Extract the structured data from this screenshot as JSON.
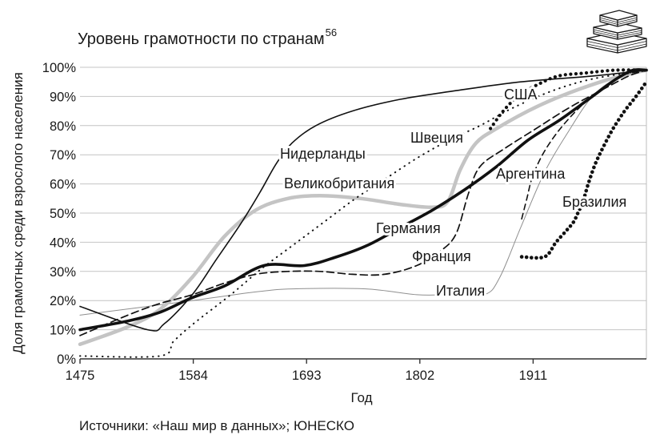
{
  "chart_data": {
    "type": "line",
    "title": "Уровень грамотности по странам",
    "title_superscript": "56",
    "xlabel": "Год",
    "ylabel": "Доля грамотных среди взрослого населения",
    "source": "Источники: «Наш мир в данных»; ЮНЕСКО",
    "xlim": [
      1475,
      2020
    ],
    "ylim": [
      0,
      100
    ],
    "x_ticks": [
      1475,
      1584,
      1693,
      1802,
      1911
    ],
    "y_ticks": [
      0,
      10,
      20,
      30,
      40,
      50,
      60,
      70,
      80,
      90,
      100
    ],
    "y_tick_labels": [
      "0%",
      "10%",
      "20%",
      "30%",
      "40%",
      "50%",
      "60%",
      "70%",
      "80%",
      "90%",
      "100%"
    ],
    "grid": true,
    "series": [
      {
        "name": "Италия",
        "color": "#8f8f8f",
        "points": [
          [
            1475,
            15
          ],
          [
            1583,
            20
          ],
          [
            1645,
            23
          ],
          [
            1680,
            24
          ],
          [
            1750,
            24
          ],
          [
            1799,
            22
          ],
          [
            1830,
            22
          ],
          [
            1864,
            22
          ],
          [
            1879,
            28
          ],
          [
            1899,
            45
          ],
          [
            1922,
            64
          ],
          [
            1945,
            78
          ],
          [
            1968,
            90
          ],
          [
            1991,
            96
          ],
          [
            2020,
            99
          ]
        ]
      },
      {
        "name": "Великобритания",
        "color": "#c4c4c4",
        "points": [
          [
            1475,
            5
          ],
          [
            1521,
            11
          ],
          [
            1552,
            17
          ],
          [
            1583,
            28
          ],
          [
            1614,
            42
          ],
          [
            1644,
            51
          ],
          [
            1675,
            55
          ],
          [
            1706,
            56
          ],
          [
            1745,
            55
          ],
          [
            1783,
            53
          ],
          [
            1814,
            52
          ],
          [
            1829,
            54
          ],
          [
            1841,
            65
          ],
          [
            1856,
            74
          ],
          [
            1876,
            79
          ],
          [
            1906,
            85
          ],
          [
            1937,
            90
          ],
          [
            1976,
            95
          ],
          [
            2007,
            98
          ],
          [
            2020,
            99
          ]
        ]
      },
      {
        "name": "Нидерланды",
        "color": "#111111",
        "points": [
          [
            1475,
            18
          ],
          [
            1540,
            10
          ],
          [
            1556,
            12
          ],
          [
            1583,
            22
          ],
          [
            1606,
            34
          ],
          [
            1629,
            46
          ],
          [
            1648,
            57
          ],
          [
            1664,
            67
          ],
          [
            1679,
            74
          ],
          [
            1702,
            80
          ],
          [
            1737,
            85
          ],
          [
            1783,
            89
          ],
          [
            1837,
            92
          ],
          [
            1899,
            95
          ],
          [
            1968,
            97
          ],
          [
            2020,
            99
          ]
        ]
      },
      {
        "name": "Швеция",
        "color": "#111111",
        "points": [
          [
            1475,
            1
          ],
          [
            1552,
            1
          ],
          [
            1565,
            6
          ],
          [
            1584,
            12
          ],
          [
            1620,
            22
          ],
          [
            1650,
            31
          ],
          [
            1680,
            39
          ],
          [
            1710,
            47
          ],
          [
            1740,
            55
          ],
          [
            1770,
            62
          ],
          [
            1800,
            69
          ],
          [
            1830,
            75
          ],
          [
            1860,
            80
          ],
          [
            1891,
            86
          ],
          [
            1930,
            92
          ],
          [
            1968,
            96
          ],
          [
            2020,
            99
          ]
        ]
      },
      {
        "name": "Германия",
        "color": "#111111",
        "points": [
          [
            1475,
            10
          ],
          [
            1521,
            13
          ],
          [
            1552,
            16
          ],
          [
            1583,
            21
          ],
          [
            1614,
            25
          ],
          [
            1652,
            32
          ],
          [
            1691,
            32
          ],
          [
            1722,
            35
          ],
          [
            1752,
            39
          ],
          [
            1783,
            45
          ],
          [
            1814,
            51
          ],
          [
            1845,
            58
          ],
          [
            1876,
            66
          ],
          [
            1906,
            75
          ],
          [
            1937,
            82
          ],
          [
            1968,
            90
          ],
          [
            1991,
            96
          ],
          [
            2007,
            99
          ],
          [
            2020,
            99
          ]
        ]
      },
      {
        "name": "Франция",
        "color": "#111111",
        "points": [
          [
            1475,
            8
          ],
          [
            1521,
            15
          ],
          [
            1552,
            19
          ],
          [
            1583,
            22
          ],
          [
            1614,
            26
          ],
          [
            1644,
            29
          ],
          [
            1675,
            30
          ],
          [
            1706,
            30
          ],
          [
            1737,
            29
          ],
          [
            1768,
            29
          ],
          [
            1799,
            32
          ],
          [
            1822,
            37
          ],
          [
            1837,
            43
          ],
          [
            1849,
            57
          ],
          [
            1860,
            66
          ],
          [
            1883,
            72
          ],
          [
            1914,
            79
          ],
          [
            1945,
            86
          ],
          [
            1976,
            92
          ],
          [
            2003,
            97
          ],
          [
            2020,
            99
          ]
        ]
      },
      {
        "name": "США",
        "color": "#111111",
        "points": [
          [
            1870,
            79
          ],
          [
            1880,
            84
          ],
          [
            1890,
            88
          ],
          [
            1900,
            91
          ],
          [
            1915,
            94
          ],
          [
            1935,
            97
          ],
          [
            1960,
            98
          ],
          [
            1990,
            99
          ],
          [
            2020,
            99
          ]
        ]
      },
      {
        "name": "Аргентина",
        "color": "#111111",
        "points": [
          [
            1900,
            48
          ],
          [
            1905,
            55
          ],
          [
            1910,
            62
          ],
          [
            1920,
            70
          ],
          [
            1935,
            78
          ],
          [
            1955,
            86
          ],
          [
            1975,
            92
          ],
          [
            1995,
            97
          ],
          [
            2020,
            99
          ]
        ]
      },
      {
        "name": "Бразилия",
        "color": "#111111",
        "points": [
          [
            1900,
            35
          ],
          [
            1922,
            35
          ],
          [
            1933,
            40
          ],
          [
            1943,
            44
          ],
          [
            1950,
            47
          ],
          [
            1954,
            50
          ],
          [
            1959,
            54
          ],
          [
            1964,
            60
          ],
          [
            1971,
            67
          ],
          [
            1979,
            73
          ],
          [
            1988,
            79
          ],
          [
            1999,
            85
          ],
          [
            2010,
            90
          ],
          [
            2020,
            95
          ]
        ]
      }
    ]
  },
  "icons": {
    "corner_icon": "books-icon"
  }
}
